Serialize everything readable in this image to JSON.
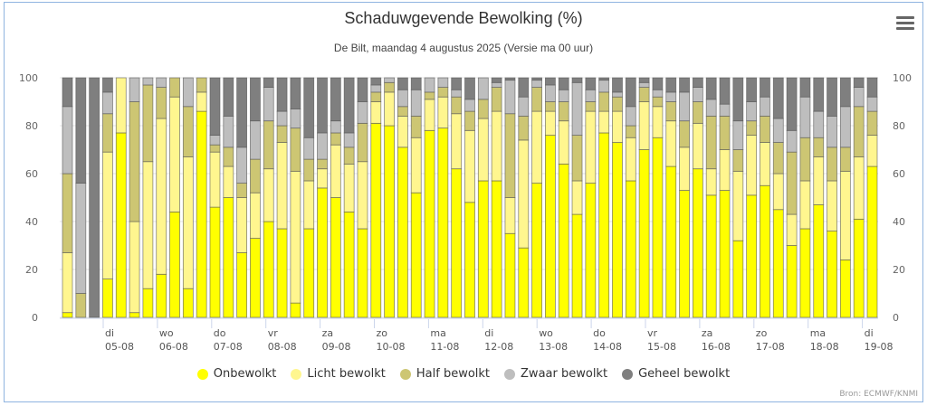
{
  "header": {
    "title": "Schaduwgevende Bewolking (%)",
    "subtitle": "De Bilt, maandag 4 augustus 2025 (Versie ma 00 uur)",
    "menu_icon": "hamburger-menu-icon"
  },
  "credit": "Bron: ECMWF/KNMI",
  "chart_data": {
    "type": "bar",
    "stacked": true,
    "title": "Schaduwgevende Bewolking (%)",
    "subtitle": "De Bilt, maandag 4 augustus 2025 (Versie ma 00 uur)",
    "xlabel": "",
    "ylabel": "",
    "ylim": [
      0,
      100
    ],
    "yticks": [
      0,
      20,
      40,
      60,
      80,
      100
    ],
    "grid": true,
    "legend_position": "bottom-center",
    "x_tick_labels": [
      {
        "day": "di",
        "date": "05-08"
      },
      {
        "day": "wo",
        "date": "06-08"
      },
      {
        "day": "do",
        "date": "07-08"
      },
      {
        "day": "vr",
        "date": "08-08"
      },
      {
        "day": "za",
        "date": "09-08"
      },
      {
        "day": "zo",
        "date": "10-08"
      },
      {
        "day": "ma",
        "date": "11-08"
      },
      {
        "day": "di",
        "date": "12-08"
      },
      {
        "day": "wo",
        "date": "13-08"
      },
      {
        "day": "do",
        "date": "14-08"
      },
      {
        "day": "vr",
        "date": "15-08"
      },
      {
        "day": "za",
        "date": "16-08"
      },
      {
        "day": "zo",
        "date": "17-08"
      },
      {
        "day": "ma",
        "date": "18-08"
      },
      {
        "day": "di",
        "date": "19-08"
      }
    ],
    "series": [
      {
        "name": "Onbewolkt",
        "color": "#ffff00"
      },
      {
        "name": "Licht bewolkt",
        "color": "#fff68f"
      },
      {
        "name": "Half bewolkt",
        "color": "#cdc673"
      },
      {
        "name": "Zwaar bewolkt",
        "color": "#bebebe"
      },
      {
        "name": "Geheel bewolkt",
        "color": "#7f7f7f"
      }
    ],
    "cumulative_note": "each bar: [onbewolkt, onbewolkt+licht, +half, +zwaar]; geheel = 100 - last",
    "bars": [
      [
        2,
        27,
        60,
        88
      ],
      [
        0,
        0,
        10,
        56
      ],
      [
        0,
        0,
        0,
        0
      ],
      [
        16,
        69,
        85,
        94
      ],
      [
        77,
        100,
        100,
        100
      ],
      [
        2,
        40,
        90,
        100
      ],
      [
        12,
        65,
        97,
        100
      ],
      [
        18,
        83,
        96,
        100
      ],
      [
        44,
        92,
        100,
        100
      ],
      [
        12,
        67,
        88,
        100
      ],
      [
        86,
        94,
        100,
        100
      ],
      [
        46,
        69,
        72,
        76
      ],
      [
        50,
        63,
        71,
        84
      ],
      [
        27,
        50,
        56,
        71
      ],
      [
        33,
        52,
        66,
        82
      ],
      [
        40,
        62,
        82,
        96
      ],
      [
        37,
        73,
        80,
        86
      ],
      [
        6,
        61,
        79,
        87
      ],
      [
        37,
        57,
        66,
        75
      ],
      [
        54,
        62,
        66,
        77
      ],
      [
        50,
        72,
        77,
        82
      ],
      [
        44,
        64,
        71,
        77
      ],
      [
        37,
        65,
        81,
        90
      ],
      [
        81,
        90,
        94,
        97
      ],
      [
        80,
        94,
        98,
        100
      ],
      [
        71,
        84,
        88,
        95
      ],
      [
        52,
        75,
        84,
        95
      ],
      [
        78,
        91,
        94,
        100
      ],
      [
        79,
        92,
        96,
        100
      ],
      [
        62,
        85,
        92,
        95
      ],
      [
        48,
        78,
        86,
        91
      ],
      [
        57,
        83,
        91,
        100
      ],
      [
        57,
        86,
        96,
        98
      ],
      [
        35,
        50,
        85,
        99
      ],
      [
        29,
        74,
        84,
        92
      ],
      [
        56,
        86,
        96,
        99
      ],
      [
        76,
        86,
        90,
        97
      ],
      [
        64,
        82,
        90,
        95
      ],
      [
        43,
        57,
        76,
        98
      ],
      [
        56,
        86,
        90,
        95
      ],
      [
        77,
        86,
        94,
        99
      ],
      [
        73,
        86,
        92,
        94
      ],
      [
        57,
        75,
        80,
        88
      ],
      [
        70,
        90,
        96,
        98
      ],
      [
        75,
        88,
        92,
        95
      ],
      [
        63,
        82,
        90,
        94
      ],
      [
        53,
        71,
        82,
        94
      ],
      [
        62,
        81,
        90,
        96
      ],
      [
        51,
        62,
        84,
        91
      ],
      [
        53,
        70,
        84,
        89
      ],
      [
        32,
        61,
        70,
        82
      ],
      [
        51,
        76,
        82,
        90
      ],
      [
        55,
        73,
        84,
        92
      ],
      [
        45,
        60,
        73,
        83
      ],
      [
        30,
        43,
        69,
        78
      ],
      [
        37,
        57,
        75,
        92
      ],
      [
        47,
        67,
        75,
        86
      ],
      [
        36,
        57,
        71,
        84
      ],
      [
        24,
        61,
        71,
        88
      ],
      [
        41,
        67,
        88,
        96
      ],
      [
        63,
        76,
        86,
        92
      ]
    ]
  },
  "legend": [
    {
      "label": "Onbewolkt",
      "color": "#ffff00"
    },
    {
      "label": "Licht bewolkt",
      "color": "#fff68f"
    },
    {
      "label": "Half bewolkt",
      "color": "#cdc673"
    },
    {
      "label": "Zwaar bewolkt",
      "color": "#bebebe"
    },
    {
      "label": "Geheel bewolkt",
      "color": "#7f7f7f"
    }
  ]
}
